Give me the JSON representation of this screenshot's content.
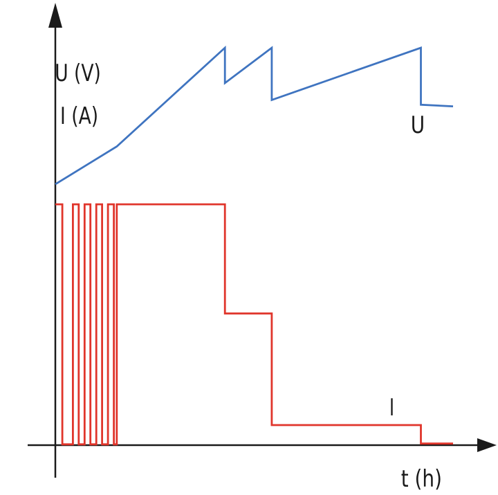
{
  "chart_data": {
    "type": "line",
    "title": "",
    "xlabel": "t (h)",
    "ylabel": [
      "U (V)",
      "I (A)"
    ],
    "grid": false,
    "x_ticks": [],
    "y_ticks": [],
    "series": [
      {
        "name": "U",
        "color": "#3f74c0",
        "points": [
          [
            0,
            3.25
          ],
          [
            1.05,
            3.72
          ],
          [
            2.9,
            4.95
          ],
          [
            2.9,
            4.51
          ],
          [
            3.7,
            4.95
          ],
          [
            3.7,
            4.3
          ],
          [
            6.25,
            4.95
          ],
          [
            6.25,
            4.24
          ],
          [
            6.8,
            4.22
          ]
        ]
      },
      {
        "name": "I",
        "color": "#e0352b",
        "points": [
          [
            0.0,
            3.0
          ],
          [
            0.12,
            3.0
          ],
          [
            0.12,
            0.01
          ],
          [
            0.3,
            0.01
          ],
          [
            0.3,
            3.0
          ],
          [
            0.4,
            3.0
          ],
          [
            0.4,
            0.01
          ],
          [
            0.5,
            0.01
          ],
          [
            0.5,
            3.0
          ],
          [
            0.6,
            3.0
          ],
          [
            0.6,
            0.01
          ],
          [
            0.7,
            0.01
          ],
          [
            0.7,
            3.0
          ],
          [
            0.8,
            3.0
          ],
          [
            0.8,
            0.01
          ],
          [
            0.9,
            0.01
          ],
          [
            0.9,
            3.0
          ],
          [
            1.0,
            3.0
          ],
          [
            1.0,
            0.01
          ],
          [
            1.05,
            0.01
          ],
          [
            1.05,
            3.0
          ],
          [
            2.9,
            3.0
          ],
          [
            2.9,
            1.64
          ],
          [
            3.7,
            1.64
          ],
          [
            3.7,
            0.25
          ],
          [
            6.25,
            0.25
          ],
          [
            6.25,
            0.02
          ],
          [
            6.8,
            0.02
          ]
        ]
      }
    ],
    "xlim": [
      0,
      7.5
    ],
    "ylim": [
      0,
      5.2
    ]
  }
}
